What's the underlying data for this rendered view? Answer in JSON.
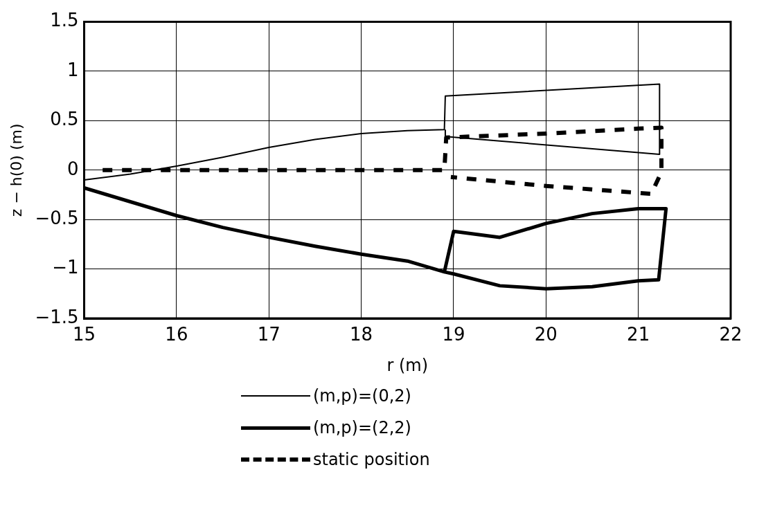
{
  "chart_data": {
    "type": "line",
    "xlabel": "r (m)",
    "ylabel": "z − h(0) (m)",
    "xlim": [
      15,
      22
    ],
    "xticks": [
      15,
      16,
      17,
      18,
      19,
      20,
      21,
      22
    ],
    "ylim": [
      -1.5,
      1.5
    ],
    "yticks": [
      1.5,
      1,
      0.5,
      0,
      {
        "value": -0.5,
        "label": "−0.5"
      },
      {
        "value": -1,
        "label": "−1"
      },
      {
        "value": -1.5,
        "label": "−1.5"
      }
    ],
    "grid": true,
    "legend": "bottom",
    "marker": "none",
    "series": [
      {
        "name": "(m,p)=(0,2)",
        "color": "#000000",
        "line_style": "solid",
        "x": [
          15,
          15.5,
          16,
          16.5,
          17,
          17.5,
          18,
          18.5,
          18.9,
          18.91,
          21.23,
          21.23,
          18.91,
          18.91
        ],
        "values": [
          -0.1,
          -0.04,
          0.04,
          0.13,
          0.23,
          0.31,
          0.37,
          0.4,
          0.41,
          0.75,
          0.87,
          0.16,
          0.34,
          0.41
        ]
      },
      {
        "name": "(m,p)=(2,2)",
        "color": "#000000",
        "line_style": "solid",
        "x": [
          15,
          15.5,
          16,
          16.5,
          17,
          17.5,
          18,
          18.5,
          18.9,
          19,
          19.5,
          20,
          20.5,
          21,
          21.3,
          21.22,
          21,
          20.5,
          20,
          19.5,
          19,
          18.9
        ],
        "values": [
          -0.18,
          -0.32,
          -0.46,
          -0.58,
          -0.68,
          -0.77,
          -0.85,
          -0.92,
          -1.03,
          -0.62,
          -0.68,
          -0.54,
          -0.44,
          -0.39,
          -0.39,
          -1.11,
          -1.12,
          -1.18,
          -1.2,
          -1.17,
          -1.05,
          -1.03
        ]
      },
      {
        "name": "static position",
        "color": "#000000",
        "line_style": "dashed",
        "x": [
          15.2,
          18.9,
          18.92,
          20,
          21,
          21.25,
          21.25,
          21.14,
          20,
          18.97
        ],
        "values": [
          0,
          0,
          0.33,
          0.37,
          0.42,
          0.43,
          -0.02,
          -0.24,
          -0.16,
          -0.07
        ]
      }
    ]
  }
}
